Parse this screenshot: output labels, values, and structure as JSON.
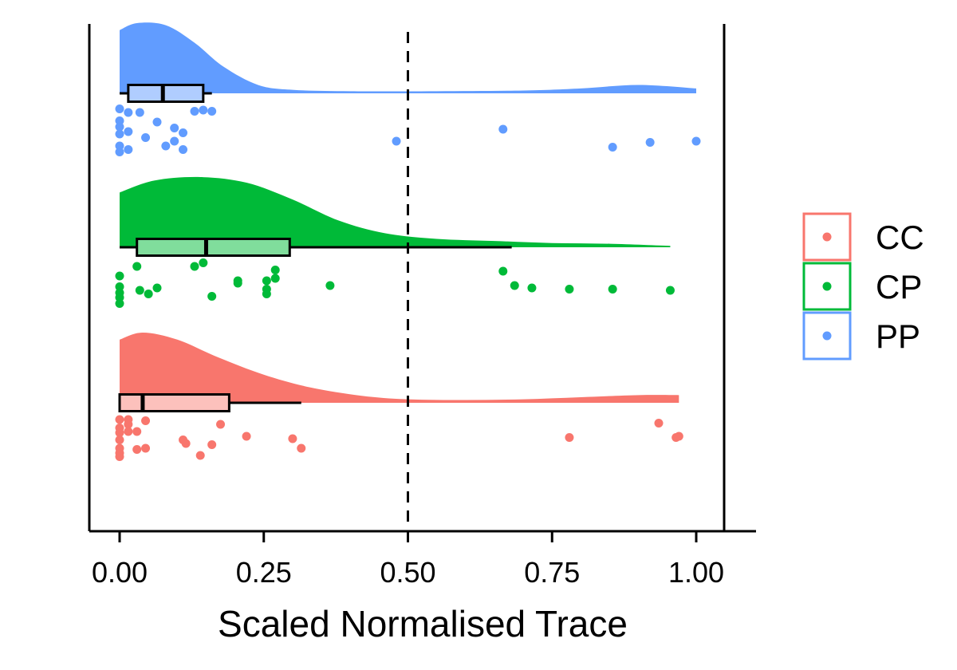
{
  "chart_data": {
    "type": "raincloud",
    "title": "",
    "xlabel": "Scaled Normalised Trace",
    "ylabel": "",
    "xlim": [
      -0.05,
      1.05
    ],
    "x_ticks": [
      0,
      0.25,
      0.5,
      0.75,
      1
    ],
    "x_tick_labels": [
      "0.00",
      "0.25",
      "0.50",
      "0.75",
      "1.00"
    ],
    "reference_line": {
      "x": 0.5,
      "style": "dashed"
    },
    "grid": false,
    "legend": {
      "placement": "right",
      "entries": [
        {
          "label": "CC",
          "color": "#F8766D"
        },
        {
          "label": "CP",
          "color": "#00BA38"
        },
        {
          "label": "PP",
          "color": "#619CFF"
        }
      ]
    },
    "groups": [
      {
        "name": "PP",
        "color": "#619CFF",
        "box_fill": "#B0CDFF",
        "density": [
          [
            0,
            0.9
          ],
          [
            0.03,
            1.0
          ],
          [
            0.08,
            0.97
          ],
          [
            0.13,
            0.72
          ],
          [
            0.18,
            0.38
          ],
          [
            0.24,
            0.12
          ],
          [
            0.3,
            0.05
          ],
          [
            0.4,
            0.03
          ],
          [
            0.55,
            0.03
          ],
          [
            0.7,
            0.04
          ],
          [
            0.8,
            0.07
          ],
          [
            0.9,
            0.12
          ],
          [
            1,
            0.07
          ]
        ],
        "box": {
          "whisker_low": 0,
          "q1": 0.015,
          "median": 0.075,
          "q3": 0.145,
          "whisker_high": 0.16
        },
        "points": [
          [
            0,
            0.05
          ],
          [
            0,
            0.55
          ],
          [
            0,
            0.8
          ],
          [
            0,
            1.1
          ],
          [
            0,
            1.6
          ],
          [
            0,
            1.85
          ],
          [
            0.015,
            0.2
          ],
          [
            0.015,
            1.0
          ],
          [
            0.015,
            1.75
          ],
          [
            0.035,
            0.2
          ],
          [
            0.045,
            1.25
          ],
          [
            0.065,
            0.6
          ],
          [
            0.08,
            1.6
          ],
          [
            0.095,
            0.85
          ],
          [
            0.095,
            1.4
          ],
          [
            0.11,
            1.05
          ],
          [
            0.11,
            1.75
          ],
          [
            0.13,
            0.15
          ],
          [
            0.145,
            0.1
          ],
          [
            0.16,
            0.15
          ],
          [
            0.48,
            1.4
          ],
          [
            0.665,
            0.9
          ],
          [
            0.855,
            1.65
          ],
          [
            0.92,
            1.45
          ],
          [
            1.0,
            1.4
          ]
        ]
      },
      {
        "name": "CP",
        "color": "#00BA38",
        "box_fill": "#80DD9C",
        "density": [
          [
            0,
            0.78
          ],
          [
            0.06,
            0.95
          ],
          [
            0.14,
            1.0
          ],
          [
            0.22,
            0.92
          ],
          [
            0.3,
            0.68
          ],
          [
            0.38,
            0.38
          ],
          [
            0.46,
            0.2
          ],
          [
            0.55,
            0.12
          ],
          [
            0.65,
            0.09
          ],
          [
            0.75,
            0.06
          ],
          [
            0.85,
            0.05
          ],
          [
            0.955,
            0.02
          ]
        ],
        "box": {
          "whisker_low": 0,
          "q1": 0.03,
          "median": 0.15,
          "q3": 0.295,
          "whisker_high": 0.68
        },
        "points": [
          [
            0,
            0.6
          ],
          [
            0,
            1.05
          ],
          [
            0,
            1.3
          ],
          [
            0,
            1.5
          ],
          [
            0,
            1.75
          ],
          [
            0.03,
            0.2
          ],
          [
            0.035,
            1.2
          ],
          [
            0.05,
            1.35
          ],
          [
            0.065,
            1.1
          ],
          [
            0.13,
            0.2
          ],
          [
            0.145,
            0.05
          ],
          [
            0.16,
            1.45
          ],
          [
            0.205,
            0.9
          ],
          [
            0.205,
            0.8
          ],
          [
            0.255,
            0.8
          ],
          [
            0.255,
            1.15
          ],
          [
            0.255,
            1.35
          ],
          [
            0.27,
            0.35
          ],
          [
            0.27,
            0.7
          ],
          [
            0.365,
            1.0
          ],
          [
            0.665,
            0.4
          ],
          [
            0.685,
            1.0
          ],
          [
            0.715,
            1.1
          ],
          [
            0.78,
            1.15
          ],
          [
            0.855,
            1.15
          ],
          [
            0.955,
            1.2
          ]
        ]
      },
      {
        "name": "CC",
        "color": "#F8766D",
        "box_fill": "#FCC1BC",
        "density": [
          [
            0,
            0.9
          ],
          [
            0.04,
            1.0
          ],
          [
            0.1,
            0.9
          ],
          [
            0.17,
            0.65
          ],
          [
            0.25,
            0.4
          ],
          [
            0.33,
            0.22
          ],
          [
            0.42,
            0.1
          ],
          [
            0.5,
            0.05
          ],
          [
            0.6,
            0.04
          ],
          [
            0.7,
            0.05
          ],
          [
            0.8,
            0.08
          ],
          [
            0.9,
            0.11
          ],
          [
            0.97,
            0.11
          ]
        ],
        "box": {
          "whisker_low": 0,
          "q1": 0,
          "median": 0.04,
          "q3": 0.19,
          "whisker_high": 0.315
        },
        "points": [
          [
            0,
            0.1
          ],
          [
            0,
            0.45
          ],
          [
            0,
            0.65
          ],
          [
            0,
            0.95
          ],
          [
            0,
            1.3
          ],
          [
            0,
            1.5
          ],
          [
            0,
            1.65
          ],
          [
            0.015,
            0.1
          ],
          [
            0.015,
            0.3
          ],
          [
            0.015,
            0.6
          ],
          [
            0.03,
            0.6
          ],
          [
            0.03,
            1.35
          ],
          [
            0.045,
            1.3
          ],
          [
            0.045,
            0.15
          ],
          [
            0.11,
            0.95
          ],
          [
            0.115,
            1.1
          ],
          [
            0.14,
            1.6
          ],
          [
            0.16,
            1.15
          ],
          [
            0.175,
            0.3
          ],
          [
            0.22,
            0.8
          ],
          [
            0.3,
            0.9
          ],
          [
            0.315,
            1.3
          ],
          [
            0.78,
            0.85
          ],
          [
            0.935,
            0.25
          ],
          [
            0.965,
            0.85
          ],
          [
            0.97,
            0.8
          ]
        ]
      }
    ]
  }
}
